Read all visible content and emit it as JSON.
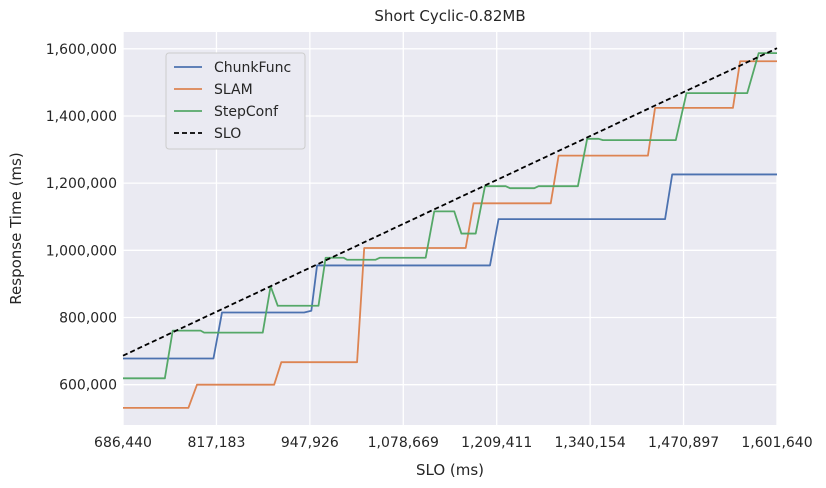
{
  "chart_data": {
    "type": "line",
    "title": "Short Cyclic-0.82MB",
    "xlabel": "SLO (ms)",
    "ylabel": "Response Time (ms)",
    "xlim": [
      686440,
      1601640
    ],
    "ylim": [
      480000,
      1650000
    ],
    "xticks": [
      686440,
      817183,
      947926,
      1078669,
      1209411,
      1340154,
      1470897,
      1601640
    ],
    "xtick_labels": [
      "686,440",
      "817,183",
      "947,926",
      "1,078,669",
      "1,209,411",
      "1,340,154",
      "1,470,897",
      "1,601,640"
    ],
    "yticks": [
      600000,
      800000,
      1000000,
      1200000,
      1400000,
      1600000
    ],
    "ytick_labels": [
      "600,000",
      "800,000",
      "1,000,000",
      "1,200,000",
      "1,400,000",
      "1,600,000"
    ],
    "grid": true,
    "legend_position": "upper-left",
    "background": "#eaeaf2",
    "series": [
      {
        "name": "ChunkFunc",
        "color": "#4c72b0",
        "style": "solid",
        "points": [
          [
            686440,
            678000
          ],
          [
            813000,
            678000
          ],
          [
            825000,
            815000
          ],
          [
            940000,
            815000
          ],
          [
            950000,
            820000
          ],
          [
            958000,
            955000
          ],
          [
            1200000,
            955000
          ],
          [
            1212000,
            1093000
          ],
          [
            1445000,
            1093000
          ],
          [
            1455000,
            1226000
          ],
          [
            1601640,
            1226000
          ]
        ]
      },
      {
        "name": "SLAM",
        "color": "#dd8452",
        "style": "solid",
        "points": [
          [
            686440,
            531000
          ],
          [
            778000,
            531000
          ],
          [
            790000,
            600000
          ],
          [
            898000,
            600000
          ],
          [
            908000,
            667000
          ],
          [
            1014000,
            667000
          ],
          [
            1024000,
            1007000
          ],
          [
            1166000,
            1007000
          ],
          [
            1177000,
            1140000
          ],
          [
            1285000,
            1140000
          ],
          [
            1296000,
            1282000
          ],
          [
            1421000,
            1282000
          ],
          [
            1431000,
            1424000
          ],
          [
            1540000,
            1424000
          ],
          [
            1550000,
            1563000
          ],
          [
            1601640,
            1563000
          ]
        ]
      },
      {
        "name": "StepConf",
        "color": "#55a868",
        "style": "solid",
        "points": [
          [
            686440,
            619000
          ],
          [
            745000,
            619000
          ],
          [
            756000,
            761000
          ],
          [
            795000,
            761000
          ],
          [
            800000,
            755000
          ],
          [
            882000,
            755000
          ],
          [
            893000,
            893000
          ],
          [
            903000,
            835000
          ],
          [
            950000,
            835000
          ],
          [
            960000,
            835000
          ],
          [
            970000,
            978000
          ],
          [
            995000,
            978000
          ],
          [
            1000000,
            972000
          ],
          [
            1040000,
            972000
          ],
          [
            1046000,
            978000
          ],
          [
            1110000,
            978000
          ],
          [
            1122000,
            1116000
          ],
          [
            1150000,
            1116000
          ],
          [
            1160000,
            1050000
          ],
          [
            1180000,
            1050000
          ],
          [
            1193000,
            1191000
          ],
          [
            1222000,
            1191000
          ],
          [
            1228000,
            1185000
          ],
          [
            1262000,
            1185000
          ],
          [
            1268000,
            1191000
          ],
          [
            1323000,
            1191000
          ],
          [
            1336000,
            1332000
          ],
          [
            1352000,
            1332000
          ],
          [
            1358000,
            1328000
          ],
          [
            1440000,
            1328000
          ],
          [
            1460000,
            1328000
          ],
          [
            1475000,
            1468000
          ],
          [
            1560000,
            1468000
          ],
          [
            1576000,
            1587000
          ],
          [
            1601640,
            1587000
          ]
        ]
      },
      {
        "name": "SLO",
        "color": "#000000",
        "style": "dashed",
        "points": [
          [
            686440,
            686440
          ],
          [
            1601640,
            1601640
          ]
        ]
      }
    ]
  }
}
